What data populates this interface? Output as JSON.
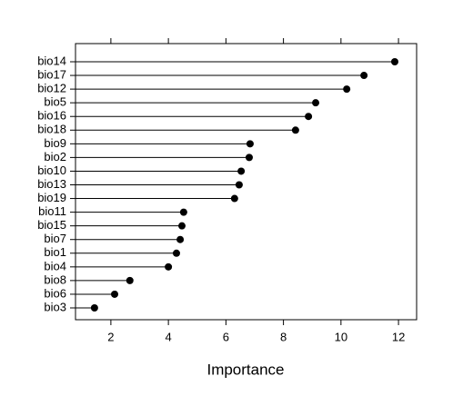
{
  "chart_data": {
    "type": "lollipop",
    "x_label": "Importance",
    "categories": [
      "bio14",
      "bio17",
      "bio12",
      "bio5",
      "bio16",
      "bio18",
      "bio9",
      "bio2",
      "bio10",
      "bio13",
      "bio19",
      "bio11",
      "bio15",
      "bio7",
      "bio1",
      "bio4",
      "bio8",
      "bio6",
      "bio3"
    ],
    "values": [
      11.87,
      10.8,
      10.2,
      9.12,
      8.87,
      8.42,
      6.84,
      6.81,
      6.53,
      6.46,
      6.3,
      4.53,
      4.47,
      4.41,
      4.28,
      4.0,
      2.66,
      2.13,
      1.43
    ],
    "color": "#000000",
    "xlim": [
      0.77,
      12.63
    ],
    "xticks": [
      2,
      4,
      6,
      8,
      10,
      12
    ]
  }
}
